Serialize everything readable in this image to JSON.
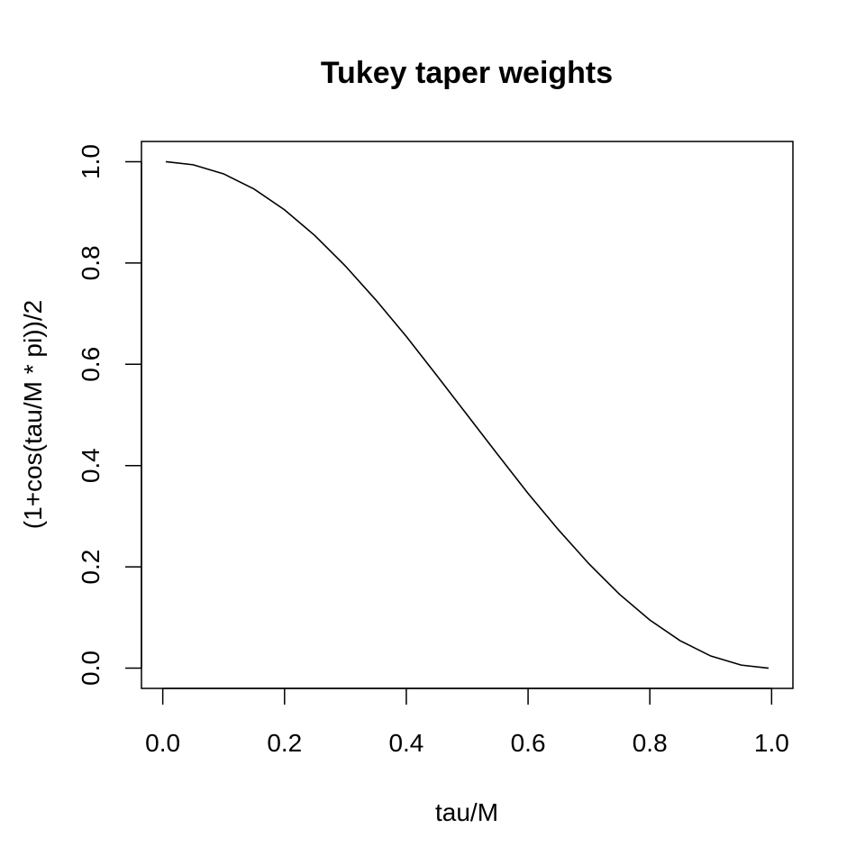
{
  "chart_data": {
    "type": "line",
    "title": "Tukey taper weights",
    "xlabel": "tau/M",
    "ylabel": "(1+cos(tau/M * pi))/2",
    "xlim": [
      -0.035,
      1.035
    ],
    "ylim": [
      -0.04,
      1.04
    ],
    "x_ticks": [
      "0.0",
      "0.2",
      "0.4",
      "0.6",
      "0.8",
      "1.0"
    ],
    "y_ticks": [
      "0.0",
      "0.2",
      "0.4",
      "0.6",
      "0.8",
      "1.0"
    ],
    "grid": false,
    "series": [
      {
        "x": [
          0.005,
          0.05,
          0.1,
          0.15,
          0.2,
          0.25,
          0.3,
          0.35,
          0.4,
          0.45,
          0.5,
          0.55,
          0.6,
          0.65,
          0.7,
          0.75,
          0.8,
          0.85,
          0.9,
          0.95,
          0.995
        ],
        "values": [
          1.0,
          0.994,
          0.976,
          0.946,
          0.905,
          0.854,
          0.794,
          0.727,
          0.655,
          0.578,
          0.5,
          0.422,
          0.345,
          0.273,
          0.206,
          0.146,
          0.095,
          0.054,
          0.024,
          0.006,
          0.0
        ]
      }
    ]
  }
}
